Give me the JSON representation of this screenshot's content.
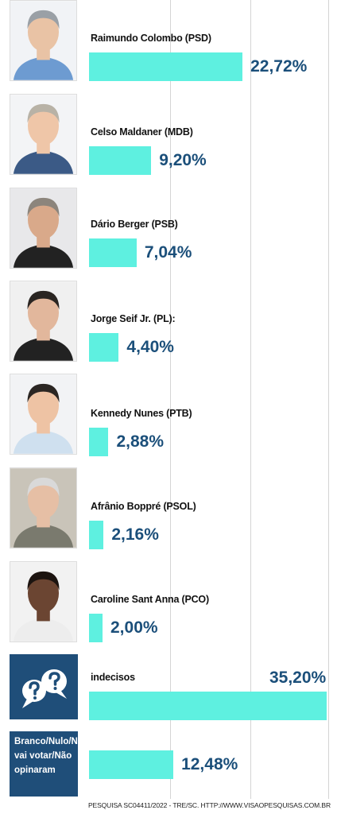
{
  "chart_data": {
    "type": "bar",
    "orientation": "horizontal",
    "categories": [
      "Raimundo Colombo (PSD)",
      "Celso Maldaner (MDB)",
      "Dário Berger (PSB)",
      "Jorge Seif Jr. (PL):",
      "Kennedy Nunes (PTB)",
      "Afrânio Boppré (PSOL)",
      "Caroline Sant Anna (PCO)",
      "indecisos",
      "Branco/Nulo/Não vai votar/Não opinaram"
    ],
    "values": [
      22.72,
      9.2,
      7.04,
      4.4,
      2.88,
      2.16,
      2.0,
      35.2,
      12.48
    ],
    "value_labels": [
      "22,72%",
      "9,20%",
      "7,04%",
      "4,40%",
      "2,88%",
      "2,16%",
      "2,00%",
      "35,20%",
      "12,48%"
    ],
    "color": "#5ef0e0",
    "xlim": [
      0,
      36
    ],
    "source": "PESQUISA SC04411/2022 - TRE/SC. HTTP://WWW.VISAOPESQUISAS.COM.BR"
  }
}
